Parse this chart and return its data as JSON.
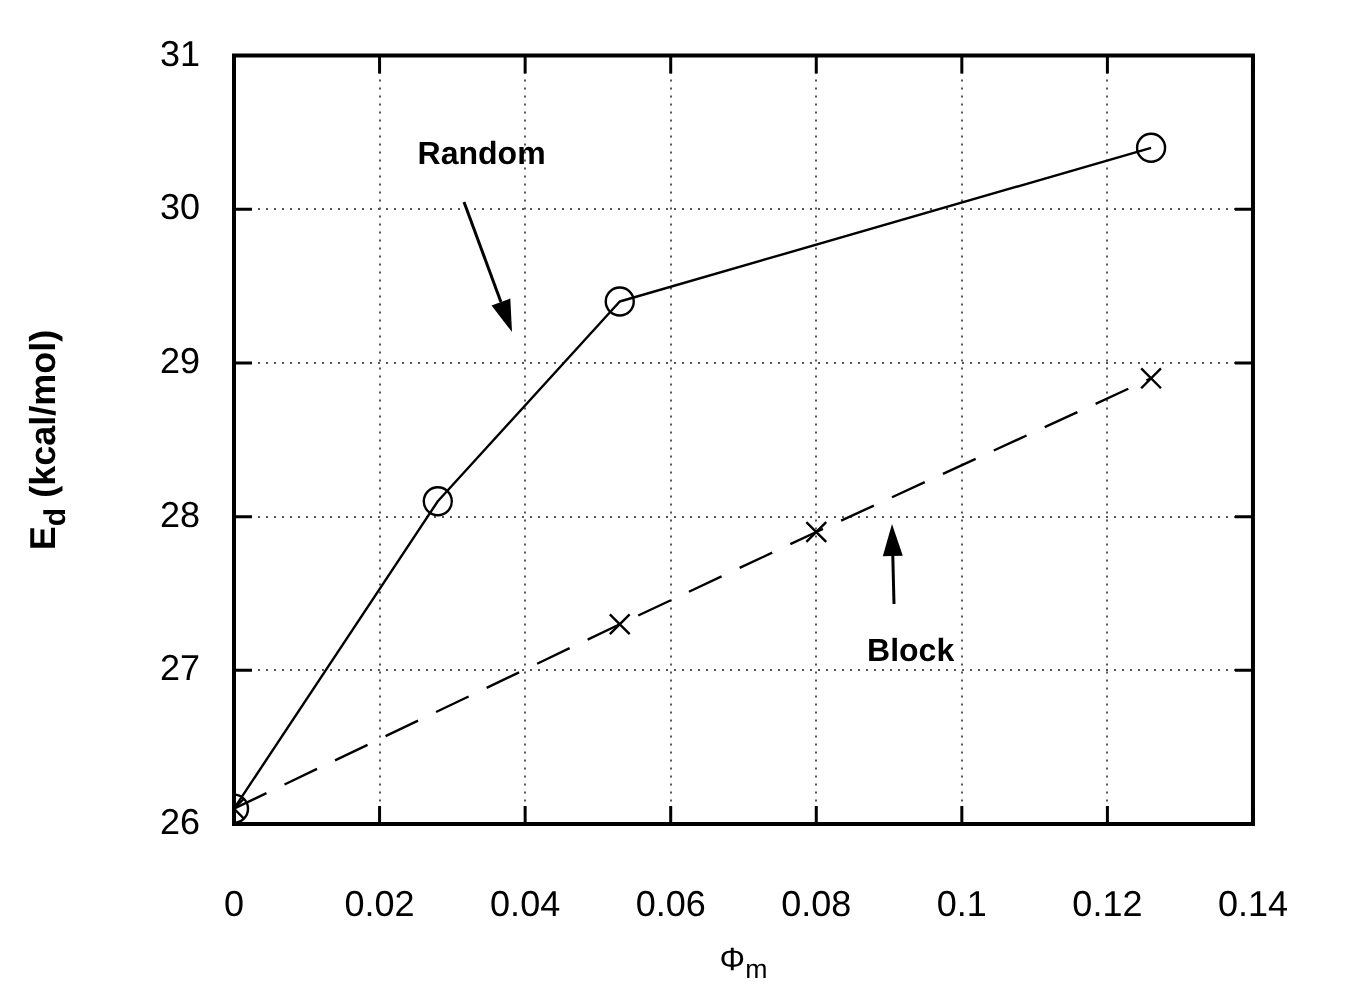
{
  "chart_data": {
    "type": "line",
    "xlabel": "Φ$_{m}$",
    "ylabel": "E$_{d}$  (kcal/mol)",
    "xlim": [
      0,
      0.14
    ],
    "xticks": [
      0,
      0.02,
      0.04,
      0.06,
      0.08,
      0.1,
      0.12,
      0.14
    ],
    "ylim": [
      26,
      31
    ],
    "yticks": [
      26,
      27,
      28,
      29,
      30,
      31
    ],
    "grid": true,
    "legend": false,
    "series": [
      {
        "x": [
          0,
          0.028,
          0.053,
          0.126
        ],
        "values": [
          26.1,
          28.1,
          29.4,
          30.4
        ],
        "color": "#000000",
        "marker": "circle",
        "line_style": "solid"
      },
      {
        "x": [
          0,
          0.053,
          0.08,
          0.126
        ],
        "values": [
          26.1,
          27.3,
          27.9,
          28.9
        ],
        "color": "#000000",
        "marker": "cross",
        "line_style": "dashed"
      }
    ],
    "annotations": [
      "Random",
      "Block"
    ]
  }
}
